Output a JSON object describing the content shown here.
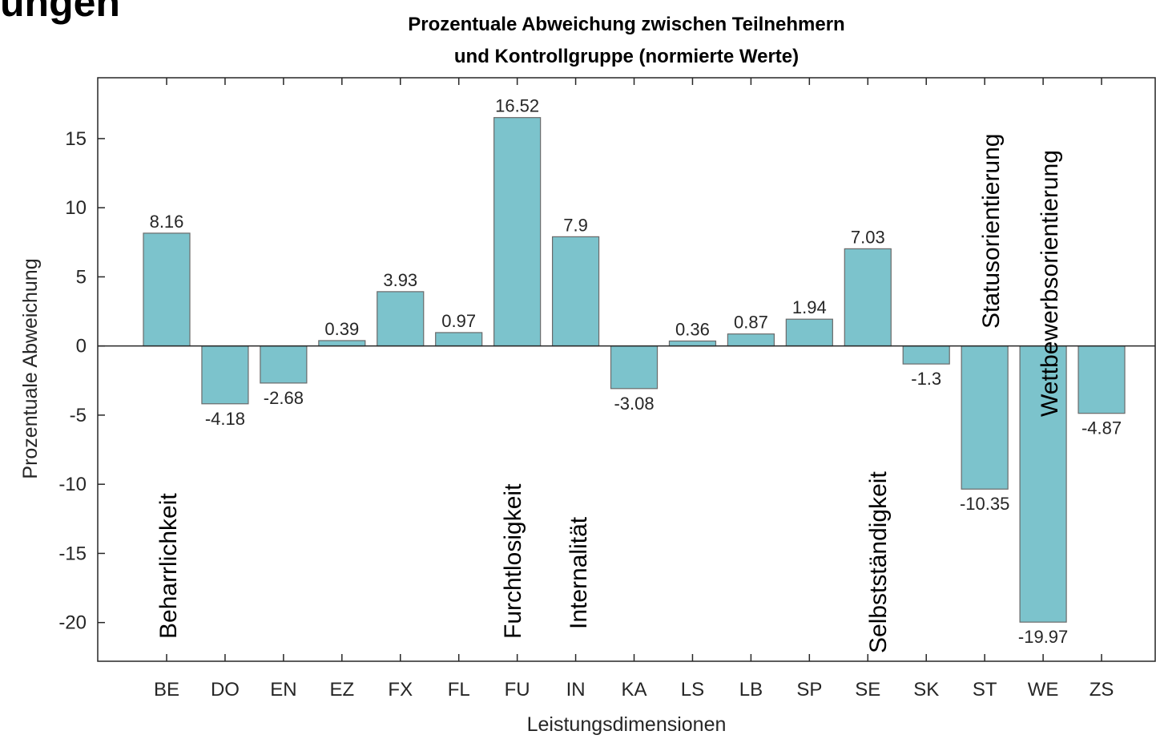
{
  "slide_title": "ungen",
  "chart_data": {
    "type": "bar",
    "title": [
      "Prozentuale Abweichung zwischen Teilnehmern",
      "und Kontrollgruppe (normierte Werte)"
    ],
    "x_label": "Leistungsdimensionen",
    "y_label": "Prozentuale Abweichung",
    "categories": [
      "BE",
      "DO",
      "EN",
      "EZ",
      "FX",
      "FL",
      "FU",
      "IN",
      "KA",
      "LS",
      "LB",
      "SP",
      "SE",
      "SK",
      "ST",
      "WE",
      "ZS"
    ],
    "values": [
      8.16,
      -4.18,
      -2.68,
      0.39,
      3.93,
      0.97,
      16.52,
      7.9,
      -3.08,
      0.36,
      0.87,
      1.94,
      7.03,
      -1.3,
      -10.35,
      -19.97,
      -4.87
    ],
    "color": "#7cc3cc",
    "ylim": [
      -22.8,
      19.4
    ],
    "yticks": [
      -20,
      -15,
      -10,
      -5,
      0,
      5,
      10,
      15
    ],
    "annotations": [
      "Beharrlichkeit",
      "Furchtlosigkeit",
      "Internalität",
      "Selbstständigkeit",
      "Statusorientierung",
      "Wettbewerbsorientierung"
    ]
  }
}
